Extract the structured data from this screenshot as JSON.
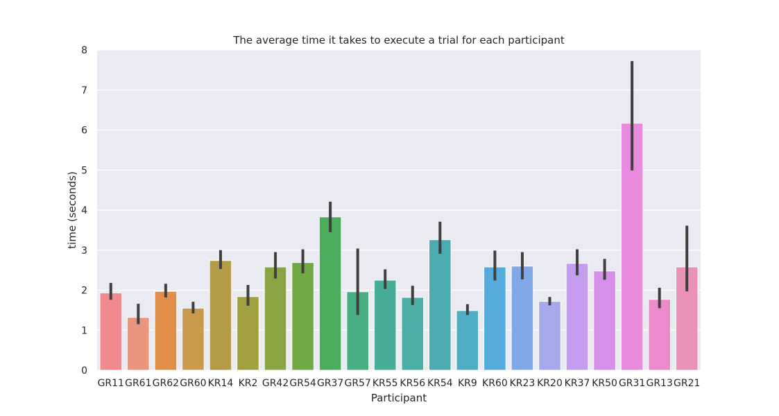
{
  "chart_data": {
    "type": "bar",
    "title": "The average time it takes to execute a trial for each participant",
    "xlabel": "Participant",
    "ylabel": "time (seconds)",
    "ylim": [
      0,
      8
    ],
    "yticks": [
      0,
      1,
      2,
      3,
      4,
      5,
      6,
      7,
      8
    ],
    "grid": true,
    "categories": [
      "GR11",
      "GR61",
      "GR62",
      "GR60",
      "KR14",
      "KR2",
      "GR42",
      "GR54",
      "GR37",
      "GR57",
      "KR55",
      "KR56",
      "KR54",
      "KR9",
      "KR60",
      "KR23",
      "KR20",
      "KR37",
      "KR50",
      "GR31",
      "GR13",
      "GR21"
    ],
    "values": [
      1.93,
      1.32,
      1.97,
      1.55,
      2.74,
      1.84,
      2.58,
      2.69,
      3.83,
      1.96,
      2.25,
      1.82,
      3.26,
      1.49,
      2.58,
      2.6,
      1.72,
      2.67,
      2.48,
      6.17,
      1.77,
      2.58
    ],
    "err_low": [
      1.76,
      1.15,
      1.82,
      1.42,
      2.53,
      1.61,
      2.29,
      2.42,
      3.45,
      1.38,
      2.03,
      1.63,
      2.91,
      1.38,
      2.24,
      2.27,
      1.62,
      2.37,
      2.26,
      4.99,
      1.55,
      1.97
    ],
    "err_high": [
      2.18,
      1.66,
      2.16,
      1.71,
      3.0,
      2.13,
      2.95,
      3.02,
      4.21,
      3.04,
      2.52,
      2.11,
      3.71,
      1.65,
      2.99,
      2.95,
      1.83,
      3.02,
      2.78,
      7.72,
      2.06,
      3.61
    ],
    "colors": [
      "#f08a8f",
      "#e9957f",
      "#e08e48",
      "#c9994c",
      "#b39b47",
      "#a0a040",
      "#8aa443",
      "#70aa45",
      "#4cae5c",
      "#49ae82",
      "#48ad98",
      "#4aaea6",
      "#4babb0",
      "#4eadc3",
      "#55acdc",
      "#80a8e6",
      "#a6a8ee",
      "#c39ced",
      "#d590e9",
      "#e88bdf",
      "#ec8bcb",
      "#e991b6"
    ]
  }
}
